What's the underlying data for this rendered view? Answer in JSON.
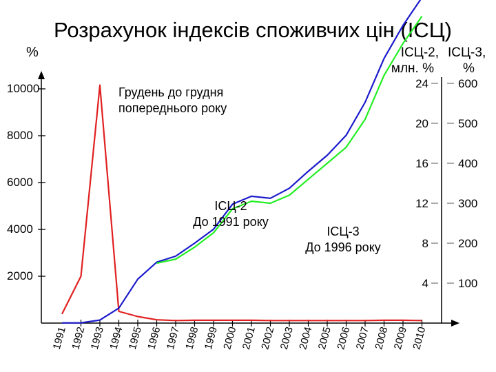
{
  "chart_data": {
    "type": "line",
    "title": "Розрахунок індексів споживчих цін (ІСЦ)",
    "left_axis": {
      "label": "%",
      "ticks": [
        2000,
        4000,
        6000,
        8000,
        10000
      ],
      "range": [
        0,
        13000
      ]
    },
    "right_axis_1": {
      "label": [
        "ІСЦ-2,",
        "млн. %"
      ],
      "ticks": [
        4,
        8,
        12,
        16,
        20,
        24
      ],
      "range": [
        0,
        36
      ]
    },
    "right_axis_2": {
      "label": [
        "ІСЦ-3,",
        "%"
      ],
      "ticks": [
        100,
        200,
        300,
        400,
        500,
        600
      ],
      "range": [
        0,
        900
      ]
    },
    "categories": [
      "1991",
      "1992",
      "1993",
      "1994",
      "1995",
      "1996",
      "1997",
      "1998",
      "1999",
      "2000",
      "2001",
      "2002",
      "2003",
      "2004",
      "2005",
      "2006",
      "2007",
      "2008",
      "2009",
      "2010"
    ],
    "series": [
      {
        "id": "red",
        "color": "#e02020",
        "values": [
          390,
          2000,
          10160,
          500,
          280,
          140,
          110,
          120,
          120,
          120,
          120,
          110,
          110,
          110,
          110,
          110,
          110,
          120,
          120,
          110
        ]
      },
      {
        "id": "blue",
        "color": "#1a1acc",
        "values": [
          0.02,
          0.03,
          0.3,
          1.5,
          4.4,
          6.1,
          6.7,
          8.0,
          9.4,
          11.9,
          12.7,
          12.5,
          13.5,
          15.2,
          16.8,
          18.8,
          22.1,
          26.5,
          29.8,
          32.6
        ]
      },
      {
        "id": "green",
        "color": "#22ee22",
        "values": [
          null,
          null,
          null,
          null,
          null,
          150,
          160,
          190,
          226,
          286,
          305,
          300,
          320,
          360,
          400,
          440,
          510,
          620,
          700,
          768
        ]
      }
    ],
    "annotations": [
      {
        "id": "red",
        "lines": [
          "Грудень до грудня",
          "попереднього року"
        ]
      },
      {
        "id": "blue",
        "lines": [
          "ІСЦ-2",
          "До 1991 року"
        ]
      },
      {
        "id": "green",
        "lines": [
          "ІСЦ-3",
          "До 1996 року"
        ]
      }
    ],
    "grid": false
  }
}
